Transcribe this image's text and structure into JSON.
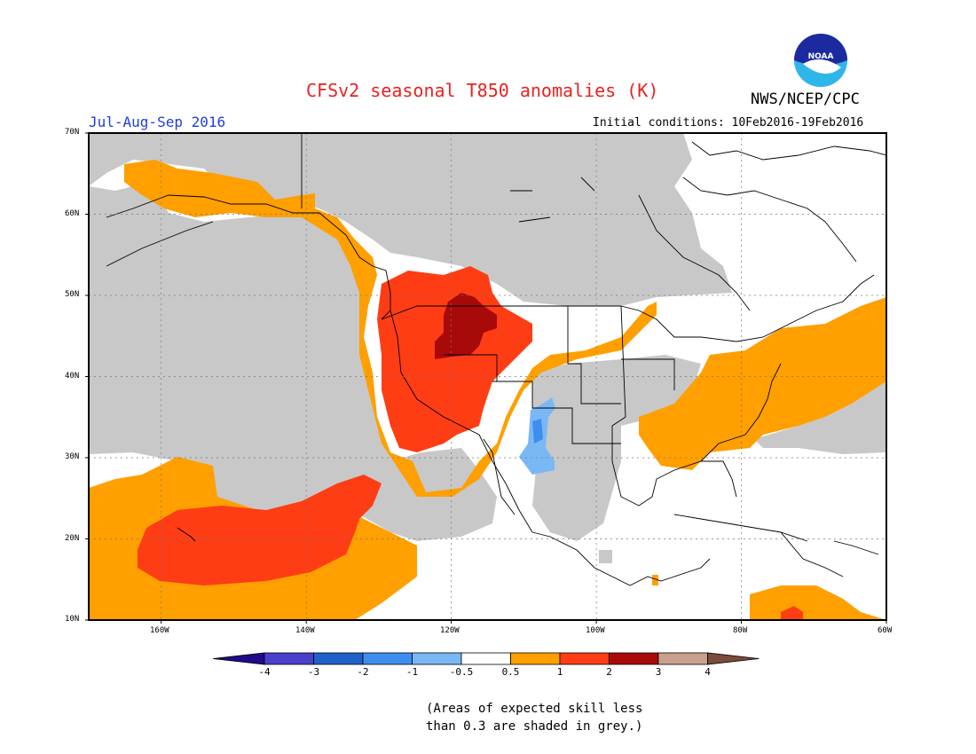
{
  "title": "CFSv2 seasonal T850 anomalies (K)",
  "agency": "NWS/NCEP/CPC",
  "logo_text": "NOAA",
  "season": "Jul-Aug-Sep 2016",
  "initial_conditions": "Initial conditions: 10Feb2016-19Feb2016",
  "lat_labels": [
    "70N",
    "60N",
    "50N",
    "40N",
    "30N",
    "20N",
    "10N"
  ],
  "lon_labels": [
    "160W",
    "140W",
    "120W",
    "100W",
    "80W",
    "60W"
  ],
  "colorbar": {
    "labels": [
      "-4",
      "-3",
      "-2",
      "-1",
      "-0.5",
      "0.5",
      "1",
      "2",
      "3",
      "4"
    ],
    "colors": [
      "#1f0c8a",
      "#4b3fcc",
      "#2060c8",
      "#3e8ef0",
      "#7ab8f5",
      "#ffffff",
      "#ff9f00",
      "#ff3d14",
      "#a80a0a",
      "#c8a090",
      "#7a4a3a"
    ]
  },
  "note_line1": "(Areas of expected skill less",
  "note_line2": "than 0.3 are shaded in grey.)",
  "map_colors": {
    "skill_grey": "#c8c8c8",
    "orange": "#ff9f00",
    "red": "#ff3d14",
    "dark_red": "#a80a0a",
    "light_blue": "#7ab8f5",
    "mid_blue": "#3e8ef0"
  }
}
